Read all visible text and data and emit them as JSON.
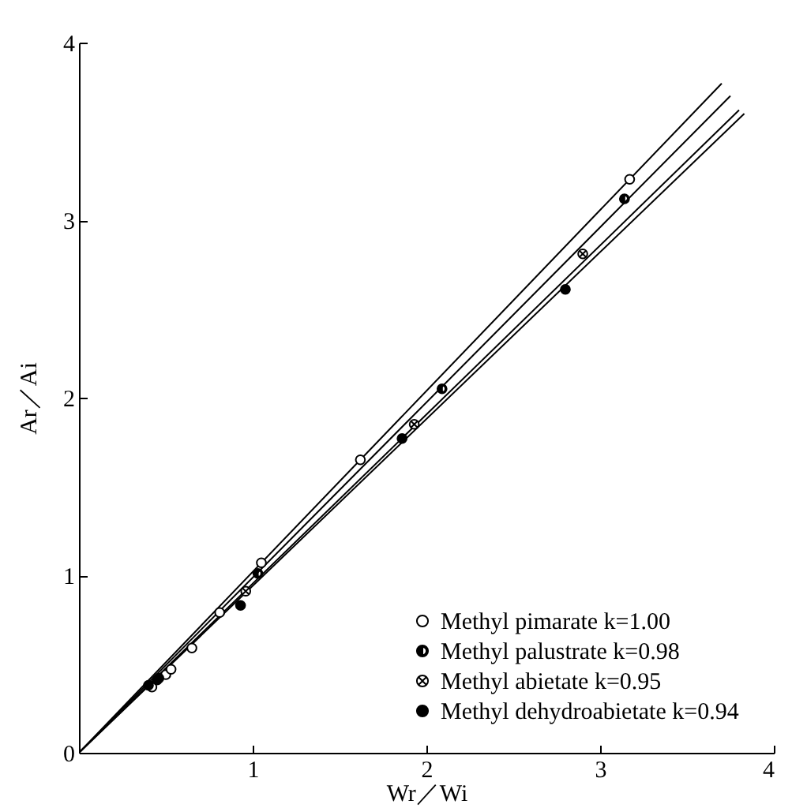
{
  "chart_data": {
    "type": "scatter",
    "xlabel": "Wr／Wi",
    "ylabel": "Ar／Ai",
    "xlim": [
      0,
      4
    ],
    "ylim": [
      0,
      4
    ],
    "xticks": [
      1,
      2,
      3,
      4
    ],
    "yticks": [
      0,
      1,
      2,
      3,
      4
    ],
    "grid": false,
    "legend": "bottom right",
    "series": [
      {
        "name": "Methyl pimarate  k=1.00",
        "color": "#000000",
        "marker": "circle-open",
        "x": [
          0.42,
          0.5,
          0.53,
          0.65,
          0.81,
          1.05,
          1.62,
          3.17
        ],
        "values": [
          0.37,
          0.44,
          0.47,
          0.59,
          0.79,
          1.07,
          1.65,
          3.23
        ]
      },
      {
        "name": "Methyl palustrate  k=0.98",
        "color": "#000000",
        "marker": "circle-half",
        "x": [
          0.46,
          1.03,
          2.09,
          3.14
        ],
        "values": [
          0.42,
          1.01,
          2.05,
          3.12
        ]
      },
      {
        "name": "Methyl abietate  k=0.95",
        "color": "#000000",
        "marker": "cross",
        "x": [
          0.96,
          1.93,
          2.9
        ],
        "values": [
          0.91,
          1.85,
          2.81
        ]
      },
      {
        "name": "Methyl dehydroabietate  k=0.94",
        "color": "#000000",
        "marker": "circle",
        "x": [
          0.4,
          0.45,
          0.93,
          1.86,
          2.8
        ],
        "values": [
          0.38,
          0.41,
          0.83,
          1.77,
          2.61
        ]
      },
      {
        "type": "line",
        "color": "#000000",
        "x": [
          0,
          3.7
        ],
        "values": [
          0,
          3.77
        ]
      },
      {
        "type": "line",
        "color": "#000000",
        "x": [
          0,
          3.75
        ],
        "values": [
          0,
          3.7
        ]
      },
      {
        "type": "line",
        "color": "#000000",
        "x": [
          0,
          3.8
        ],
        "values": [
          0,
          3.62
        ]
      },
      {
        "type": "line",
        "color": "#000000",
        "x": [
          0,
          3.83
        ],
        "values": [
          0,
          3.6
        ]
      }
    ]
  }
}
